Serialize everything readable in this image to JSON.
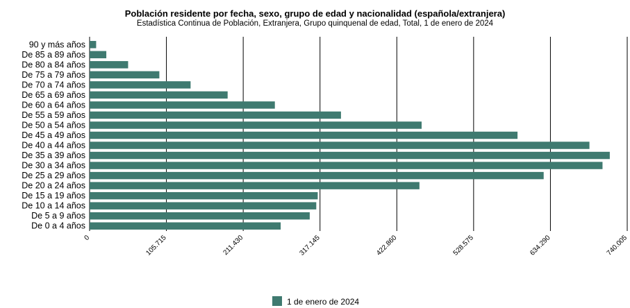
{
  "chart_data": {
    "type": "bar",
    "orientation": "horizontal",
    "title": "Población residente por fecha, sexo, grupo de edad y nacionalidad (española/extranjera)",
    "subtitle": "Estadística Continua de Población, Extranjera, Grupo quinquenal de edad, Total, 1 de enero de 2024",
    "categories": [
      "90 y más años",
      "De 85 a 89 años",
      "De 80 a 84 años",
      "De 75 a 79 años",
      "De 70 a 74 años",
      "De 65 a 69 años",
      "De 60 a 64 años",
      "De 55 a 59 años",
      "De 50 a 54 años",
      "De 45 a 49 años",
      "De 40 a 44 años",
      "De 35 a 39 años",
      "De 30 a 34 años",
      "De 25 a 29 años",
      "De 20 a 24 años",
      "De 15 a 19 años",
      "De 10 a 14 años",
      "De 5 a 9 años",
      "De 0 a 4 años"
    ],
    "series": [
      {
        "name": "1 de enero de 2024",
        "values": [
          9000,
          23000,
          53000,
          96000,
          139000,
          190000,
          255000,
          346000,
          457000,
          589000,
          688000,
          716000,
          706000,
          625000,
          454000,
          314000,
          312000,
          303000,
          263000
        ]
      }
    ],
    "xlim": [
      0,
      740005
    ],
    "ticks": [
      "0",
      "105.715",
      "211.430",
      "317.145",
      "422.860",
      "528.575",
      "634.290",
      "740.005"
    ],
    "grid": true,
    "legend_position": "bottom",
    "colors": {
      "bar": "#3f7a70",
      "grid": "#000000"
    }
  }
}
